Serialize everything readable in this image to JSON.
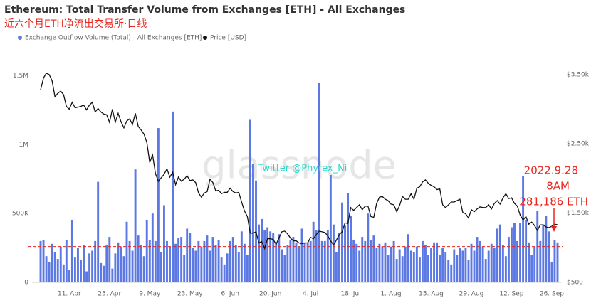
{
  "chart_data": {
    "type": "bar",
    "title": "Ethereum: Total Transfer Volume from Exchanges [ETH] - All Exchanges",
    "subtitle": "近六个月ETH净流出交易所·日线",
    "watermark": "glassnode",
    "annotations": [
      "Twitter @Phyrex_Ni",
      "2022.9.28",
      "8AM",
      "281,186 ETH"
    ],
    "legend": "top-left",
    "reference_line": {
      "value": 260000,
      "color": "#e8261f"
    },
    "categories": [
      null,
      null,
      null,
      null,
      null,
      null,
      null,
      null,
      null,
      null,
      "11. Apr",
      null,
      null,
      null,
      null,
      null,
      null,
      null,
      null,
      null,
      null,
      null,
      null,
      null,
      "25. Apr",
      null,
      null,
      null,
      null,
      null,
      null,
      null,
      null,
      null,
      null,
      null,
      null,
      null,
      "9. May",
      null,
      null,
      null,
      null,
      null,
      null,
      null,
      null,
      null,
      null,
      null,
      null,
      null,
      "23. May",
      null,
      null,
      null,
      null,
      null,
      null,
      null,
      null,
      null,
      null,
      null,
      null,
      null,
      "6. Jun",
      null,
      null,
      null,
      null,
      null,
      null,
      null,
      null,
      null,
      null,
      null,
      null,
      null,
      "20. Jun",
      null,
      null,
      null,
      null,
      null,
      null,
      null,
      null,
      null,
      null,
      null,
      null,
      null,
      "4. Jul",
      null,
      null,
      null,
      null,
      null,
      null,
      null,
      null,
      null,
      null,
      null,
      null,
      null,
      "18. Jul",
      null,
      null,
      null,
      null,
      null,
      null,
      null,
      null,
      null,
      null,
      null,
      null,
      null,
      "1. Aug",
      null,
      null,
      null,
      null,
      null,
      null,
      null,
      null,
      null,
      null,
      null,
      null,
      null,
      "15. Aug",
      null,
      null,
      null,
      null,
      null,
      null,
      null,
      null,
      null,
      null,
      null,
      null,
      null,
      "29. Aug",
      null,
      null,
      null,
      null,
      null,
      null,
      null,
      null,
      null,
      null,
      null,
      null,
      null,
      "12. Sep",
      null,
      null,
      null,
      null,
      null,
      null,
      null,
      null,
      null,
      null,
      null,
      null,
      null,
      "26. Sep",
      null,
      null
    ],
    "series": [
      {
        "name": "Exchange Outflow Volume (Total) - All Exchanges [ETH]",
        "color": "#5b78e3",
        "values": [
          300000,
          310000,
          190000,
          150000,
          280000,
          220000,
          170000,
          260000,
          130000,
          310000,
          90000,
          450000,
          180000,
          250000,
          160000,
          270000,
          80000,
          210000,
          230000,
          300000,
          730000,
          140000,
          120000,
          270000,
          330000,
          100000,
          210000,
          290000,
          260000,
          190000,
          440000,
          300000,
          230000,
          820000,
          340000,
          270000,
          190000,
          450000,
          310000,
          500000,
          300000,
          1120000,
          220000,
          560000,
          300000,
          260000,
          1240000,
          280000,
          320000,
          330000,
          200000,
          390000,
          360000,
          250000,
          230000,
          300000,
          260000,
          300000,
          340000,
          230000,
          330000,
          270000,
          310000,
          180000,
          130000,
          210000,
          300000,
          330000,
          270000,
          220000,
          370000,
          280000,
          200000,
          1180000,
          860000,
          740000,
          420000,
          460000,
          380000,
          400000,
          370000,
          360000,
          290000,
          350000,
          240000,
          200000,
          270000,
          310000,
          330000,
          290000,
          260000,
          390000,
          290000,
          290000,
          300000,
          440000,
          380000,
          1450000,
          300000,
          300000,
          380000,
          780000,
          420000,
          220000,
          360000,
          580000,
          410000,
          650000,
          480000,
          310000,
          280000,
          230000,
          330000,
          300000,
          500000,
          310000,
          340000,
          250000,
          280000,
          260000,
          290000,
          200000,
          260000,
          300000,
          170000,
          240000,
          190000,
          260000,
          350000,
          230000,
          220000,
          260000,
          180000,
          300000,
          270000,
          200000,
          250000,
          290000,
          290000,
          200000,
          250000,
          220000,
          160000,
          130000,
          240000,
          200000,
          250000,
          230000,
          250000,
          160000,
          280000,
          230000,
          330000,
          300000,
          260000,
          170000,
          230000,
          280000,
          250000,
          390000,
          420000,
          270000,
          190000,
          330000,
          400000,
          430000,
          300000,
          430000,
          770000,
          450000,
          290000,
          200000,
          260000,
          520000,
          300000,
          420000,
          480000,
          370000,
          150000,
          310000,
          290000
        ]
      },
      {
        "name": "Price [USD]",
        "color": "#111111",
        "type": "line",
        "axis": "y2",
        "values": [
          3280,
          3450,
          3520,
          3500,
          3410,
          3180,
          3230,
          3260,
          3210,
          3040,
          3000,
          3100,
          3020,
          3030,
          3040,
          3060,
          2990,
          3060,
          3100,
          2960,
          3010,
          2960,
          2930,
          2920,
          2810,
          3000,
          2810,
          2940,
          2820,
          2730,
          2830,
          2860,
          2780,
          2940,
          2750,
          2700,
          2640,
          2520,
          2230,
          2340,
          2070,
          1960,
          2010,
          2060,
          2140,
          2020,
          2090,
          1910,
          2020,
          1960,
          1990,
          2040,
          1970,
          1980,
          1940,
          1790,
          1730,
          1790,
          1810,
          1990,
          1940,
          1820,
          1830,
          1780,
          1800,
          1800,
          1860,
          1810,
          1790,
          1800,
          1660,
          1530,
          1450,
          1210,
          1210,
          1230,
          1070,
          1090,
          990,
          1130,
          1130,
          1120,
          1050,
          1140,
          1230,
          1240,
          1200,
          1140,
          1100,
          1100,
          1070,
          1060,
          1070,
          1070,
          1150,
          1130,
          1190,
          1240,
          1230,
          1220,
          1170,
          1100,
          1040,
          1110,
          1190,
          1230,
          1360,
          1350,
          1580,
          1540,
          1580,
          1620,
          1550,
          1600,
          1600,
          1450,
          1440,
          1640,
          1730,
          1740,
          1700,
          1680,
          1630,
          1620,
          1520,
          1610,
          1740,
          1700,
          1700,
          1780,
          1700,
          1860,
          1880,
          1950,
          1980,
          1930,
          1900,
          1880,
          1840,
          1850,
          1620,
          1580,
          1620,
          1660,
          1660,
          1680,
          1700,
          1510,
          1490,
          1430,
          1550,
          1520,
          1560,
          1590,
          1580,
          1580,
          1620,
          1560,
          1640,
          1680,
          1630,
          1720,
          1780,
          1710,
          1720,
          1640,
          1600,
          1470,
          1400,
          1450,
          1340,
          1370,
          1320,
          1250,
          1330,
          1330,
          1300,
          1290,
          1310,
          1340,
          1330
        ]
      }
    ],
    "ylim": [
      0,
      1740000
    ],
    "yticks": [
      0,
      {
        "value": 500000,
        "label": "500K"
      },
      {
        "value": 1000000,
        "label": "1M"
      },
      {
        "value": 1500000,
        "label": "1.5M"
      }
    ],
    "y2lim": [
      500,
      3960
    ],
    "y2ticks": [
      {
        "value": 500,
        "label": "$500"
      },
      {
        "value": 1500,
        "label": "$1.50k"
      },
      {
        "value": 2500,
        "label": "$2.50k"
      },
      {
        "value": 3500,
        "label": "$3.50k"
      }
    ]
  }
}
